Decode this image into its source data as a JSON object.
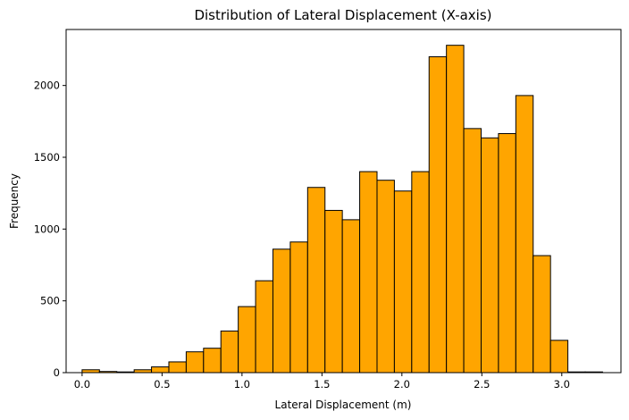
{
  "chart_data": {
    "type": "bar",
    "title": "Distribution of Lateral Displacement (X-axis)",
    "xlabel": "Lateral Displacement (m)",
    "ylabel": "Frequency",
    "xlim": [
      -0.1,
      3.37
    ],
    "ylim": [
      0,
      2390
    ],
    "xticks": [
      0.0,
      0.5,
      1.0,
      1.5,
      2.0,
      2.5,
      3.0
    ],
    "xtick_labels": [
      "0.0",
      "0.5",
      "1.0",
      "1.5",
      "2.0",
      "2.5",
      "3.0"
    ],
    "yticks": [
      0,
      500,
      1000,
      1500,
      2000
    ],
    "ytick_labels": [
      "0",
      "500",
      "1000",
      "1500",
      "2000"
    ],
    "bin_width": 0.1085,
    "bin_starts": [
      0.0,
      0.1085,
      0.217,
      0.3255,
      0.434,
      0.5425,
      0.651,
      0.7595,
      0.868,
      0.9765,
      1.085,
      1.1935,
      1.302,
      1.4105,
      1.519,
      1.6275,
      1.736,
      1.8445,
      1.953,
      2.0615,
      2.17,
      2.2785,
      2.387,
      2.4955,
      2.604,
      2.7125,
      2.821,
      2.9295,
      3.038,
      3.1465
    ],
    "values": [
      20,
      8,
      5,
      20,
      40,
      75,
      145,
      170,
      290,
      460,
      640,
      860,
      910,
      1290,
      1130,
      1065,
      1400,
      1340,
      1265,
      1400,
      2200,
      2280,
      1700,
      1635,
      1665,
      1930,
      815,
      225,
      5,
      5
    ],
    "bar_color": "#FFA500",
    "edge_color": "#000000",
    "grid": false,
    "legend": "none"
  }
}
